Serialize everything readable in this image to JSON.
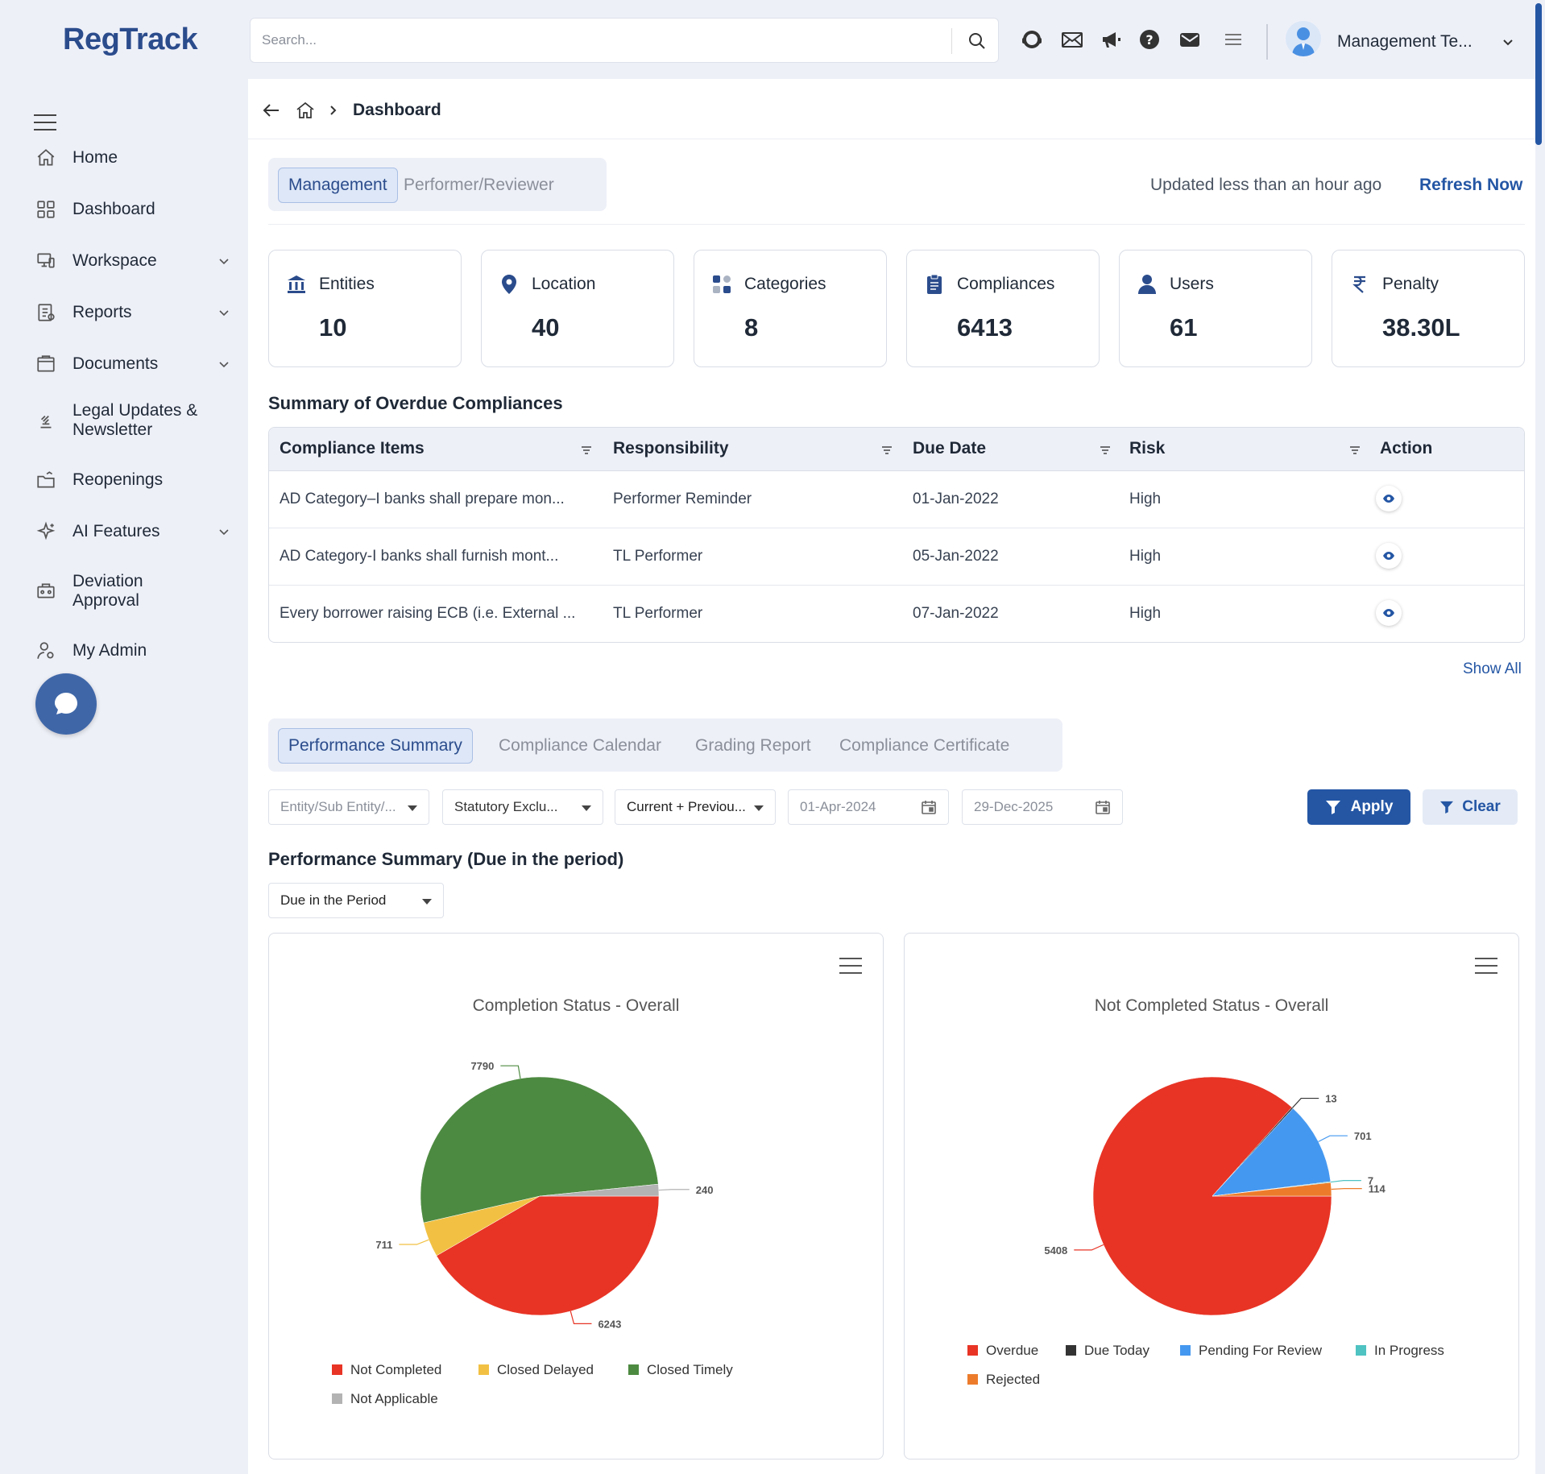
{
  "app": {
    "logo_text": "RegTrack",
    "brand_color": "#2b4c8c",
    "accent": "#2456a4"
  },
  "search": {
    "placeholder": "Search..."
  },
  "topbar": {
    "icons": [
      "support-icon",
      "mail-icon",
      "megaphone-icon",
      "help-icon",
      "envelope-icon",
      "list-icon"
    ],
    "user_name": "Management Te..."
  },
  "sidebar": {
    "items": [
      {
        "label": "Home",
        "icon": "home-icon",
        "expandable": false
      },
      {
        "label": "Dashboard",
        "icon": "dashboard-icon",
        "expandable": false
      },
      {
        "label": "Workspace",
        "icon": "workspace-icon",
        "expandable": true
      },
      {
        "label": "Reports",
        "icon": "reports-icon",
        "expandable": true
      },
      {
        "label": "Documents",
        "icon": "documents-icon",
        "expandable": true
      },
      {
        "label": "Legal Updates & Newsletter",
        "line1": "Legal Updates &",
        "line2": "Newsletter",
        "icon": "gavel-icon",
        "expandable": false
      },
      {
        "label": "Reopenings",
        "icon": "reopen-icon",
        "expandable": false
      },
      {
        "label": "AI Features",
        "icon": "sparkle-icon",
        "expandable": true
      },
      {
        "label": "Deviation Approval",
        "line1": "Deviation",
        "line2": "Approval",
        "icon": "deviation-icon",
        "expandable": false
      },
      {
        "label": "My Admin",
        "icon": "admin-icon",
        "expandable": false
      }
    ]
  },
  "breadcrumb": {
    "current": "Dashboard"
  },
  "view_toggle": {
    "options": [
      "Management",
      "Performer/Reviewer"
    ],
    "active": "Management"
  },
  "status": {
    "updated": "Updated less than an hour ago",
    "refresh": "Refresh Now"
  },
  "stats": [
    {
      "label": "Entities",
      "value": "10",
      "icon": "entities-icon"
    },
    {
      "label": "Location",
      "value": "40",
      "icon": "location-icon"
    },
    {
      "label": "Categories",
      "value": "8",
      "icon": "categories-icon"
    },
    {
      "label": "Compliances",
      "value": "6413",
      "icon": "clipboard-icon"
    },
    {
      "label": "Users",
      "value": "61",
      "icon": "user-icon"
    },
    {
      "label": "Penalty",
      "value": "38.30L",
      "icon": "rupee-icon"
    }
  ],
  "overdue": {
    "title": "Summary of Overdue Compliances",
    "columns": [
      "Compliance Items",
      "Responsibility",
      "Due Date",
      "Risk",
      "Action"
    ],
    "rows": [
      {
        "item": "AD Category–I banks shall prepare mon...",
        "responsibility": "Performer Reminder",
        "due": "01-Jan-2022",
        "risk": "High"
      },
      {
        "item": "AD Category-I banks shall furnish mont...",
        "responsibility": "TL Performer",
        "due": "05-Jan-2022",
        "risk": "High"
      },
      {
        "item": "Every borrower raising ECB (i.e. External ...",
        "responsibility": "TL Performer",
        "due": "07-Jan-2022",
        "risk": "High"
      }
    ],
    "show_all": "Show All"
  },
  "perf_tabs": {
    "items": [
      "Performance Summary",
      "Compliance Calendar",
      "Grading Report",
      "Compliance Certificate"
    ],
    "active": "Performance Summary"
  },
  "filters": {
    "entity": "Entity/Sub Entity/...",
    "statutory": "Statutory Exclu...",
    "period": "Current + Previou...",
    "from_date": "01-Apr-2024",
    "to_date": "29-Dec-2025",
    "apply": "Apply",
    "clear": "Clear"
  },
  "perf_section": {
    "title": "Performance Summary (Due in the period)",
    "period_select": "Due in the Period"
  },
  "chart_data": [
    {
      "type": "pie",
      "title": "Completion Status - Overall",
      "series": [
        {
          "name": "Not Completed",
          "value": 6243,
          "color": "#e83425"
        },
        {
          "name": "Closed Delayed",
          "value": 711,
          "color": "#f2c144"
        },
        {
          "name": "Closed Timely",
          "value": 7790,
          "color": "#4d8a41"
        },
        {
          "name": "Not Applicable",
          "value": 240,
          "color": "#b3b3b3"
        }
      ],
      "legend": "bottom"
    },
    {
      "type": "pie",
      "title": "Not Completed Status - Overall",
      "series": [
        {
          "name": "Overdue",
          "value": 5408,
          "color": "#e83425"
        },
        {
          "name": "Due Today",
          "value": 13,
          "color": "#333333"
        },
        {
          "name": "Pending For Review",
          "value": 701,
          "color": "#4598f0"
        },
        {
          "name": "In Progress",
          "value": 7,
          "color": "#4fc2c2"
        },
        {
          "name": "Rejected",
          "value": 114,
          "color": "#ec7c2b"
        }
      ],
      "legend": "bottom"
    }
  ]
}
